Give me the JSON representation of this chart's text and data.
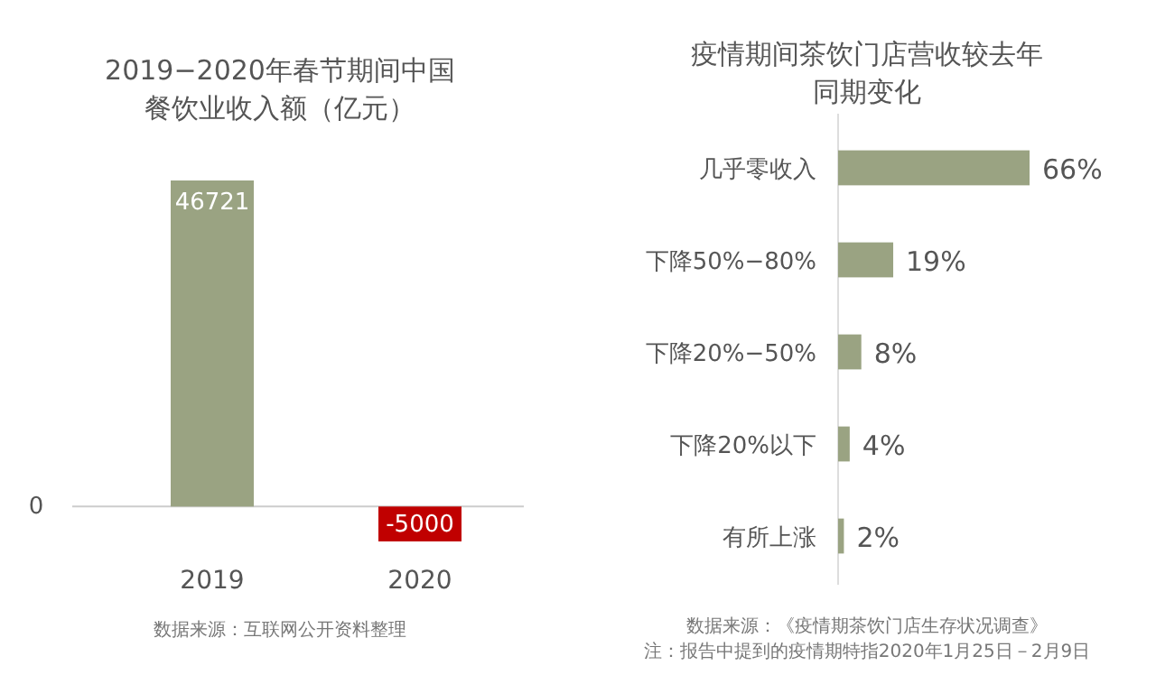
{
  "chart_data": [
    {
      "type": "bar",
      "title": "2019−2020年春节期间中国餐饮业收入额（亿元）",
      "categories": [
        "2019",
        "2020"
      ],
      "values": [
        46721,
        -5000
      ],
      "colors": [
        "#9aa382",
        "#c00000"
      ],
      "data_labels": true,
      "annotations": [
        "0",
        "数据来源：互联网公开资料整理"
      ]
    },
    {
      "type": "bar",
      "orientation": "horizontal",
      "title": "疫情期间茶饮门店营收较去年同期变化",
      "categories": [
        "几乎零收入",
        "下降50%−80%",
        "下降20%−50%",
        "下降20%以下",
        "有所上涨"
      ],
      "values": [
        66,
        19,
        8,
        4,
        2
      ],
      "color": "#9aa382",
      "value_labels": [
        "66%",
        "19%",
        "8%",
        "4%",
        "2%"
      ],
      "tick_labels": "y",
      "annotations": [
        "数据来源：《疫情期茶饮门店生存状况调查》",
        "注：报告中提到的疫情期特指2020年1月25日－2月9日"
      ]
    }
  ]
}
